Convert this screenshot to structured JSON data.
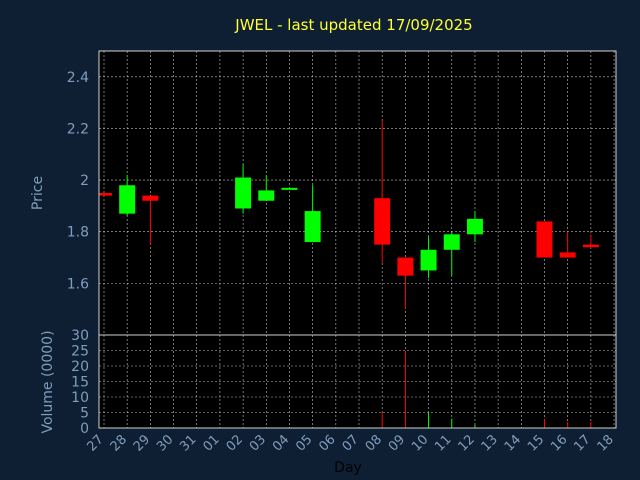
{
  "chart_data": {
    "type": "candlestick",
    "title": "JWEL - last updated 17/09/2025",
    "xlabel": "Day",
    "ylabel": "Price",
    "volume_ylabel": "Volume (0000)",
    "ylim": [
      1.4,
      2.5
    ],
    "yticks": [
      "1.6",
      "1.8",
      "2",
      "2.2",
      "2.4"
    ],
    "volume_ylim": [
      0,
      30
    ],
    "volume_yticks": [
      "0",
      "5",
      "10",
      "15",
      "20",
      "25",
      "30"
    ],
    "categories": [
      "27",
      "28",
      "29",
      "30",
      "31",
      "01",
      "02",
      "03",
      "04",
      "05",
      "06",
      "07",
      "08",
      "09",
      "10",
      "11",
      "12",
      "13",
      "14",
      "15",
      "16",
      "17",
      "18"
    ],
    "candles": [
      {
        "day": "27",
        "open": 1.95,
        "high": 1.95,
        "low": 1.94,
        "close": 1.94
      },
      {
        "day": "28",
        "open": 1.87,
        "high": 2.02,
        "low": 1.86,
        "close": 1.98
      },
      {
        "day": "29",
        "open": 1.94,
        "high": 1.94,
        "low": 1.75,
        "close": 1.92
      },
      {
        "day": "02",
        "open": 1.89,
        "high": 2.06,
        "low": 1.87,
        "close": 2.01
      },
      {
        "day": "03",
        "open": 1.92,
        "high": 2.02,
        "low": 1.92,
        "close": 1.96
      },
      {
        "day": "04",
        "open": 1.97,
        "high": 1.97,
        "low": 1.97,
        "close": 1.97
      },
      {
        "day": "05",
        "open": 1.76,
        "high": 1.98,
        "low": 1.76,
        "close": 1.88
      },
      {
        "day": "08",
        "open": 1.93,
        "high": 2.23,
        "low": 1.68,
        "close": 1.75
      },
      {
        "day": "09",
        "open": 1.7,
        "high": 1.7,
        "low": 1.5,
        "close": 1.63
      },
      {
        "day": "10",
        "open": 1.65,
        "high": 1.78,
        "low": 1.62,
        "close": 1.73
      },
      {
        "day": "11",
        "open": 1.73,
        "high": 1.8,
        "low": 1.63,
        "close": 1.79
      },
      {
        "day": "12",
        "open": 1.79,
        "high": 1.88,
        "low": 1.76,
        "close": 1.85
      },
      {
        "day": "15",
        "open": 1.84,
        "high": 1.84,
        "low": 1.7,
        "close": 1.7
      },
      {
        "day": "16",
        "open": 1.72,
        "high": 1.8,
        "low": 1.7,
        "close": 1.7
      },
      {
        "day": "17",
        "open": 1.75,
        "high": 1.79,
        "low": 1.74,
        "close": 1.74
      }
    ],
    "volume": [
      {
        "day": "08",
        "value": 5
      },
      {
        "day": "09",
        "value": 25
      },
      {
        "day": "10",
        "value": 5
      },
      {
        "day": "11",
        "value": 3
      },
      {
        "day": "12",
        "value": 1
      },
      {
        "day": "15",
        "value": 3
      },
      {
        "day": "16",
        "value": 2
      },
      {
        "day": "17",
        "value": 2
      }
    ],
    "grid": true,
    "colors": {
      "background": "#0f1f33",
      "panel": "#000000",
      "grid": "#c0c0c0",
      "axis_text": "#7f9dbd",
      "title": "#ffff33",
      "up": "#00ff00",
      "down": "#ff0000"
    }
  }
}
